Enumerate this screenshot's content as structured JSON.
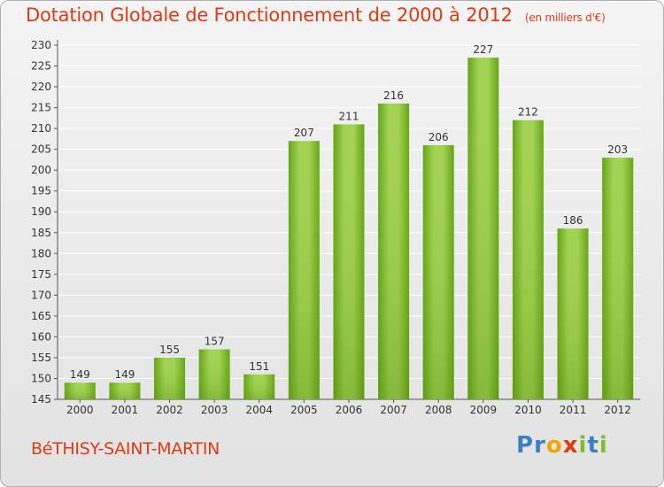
{
  "header": {
    "title": "Dotation Globale de Fonctionnement de 2000 à 2012",
    "unit": "(en milliers d'€)"
  },
  "footer": {
    "commune": "BéTHISY-SAINT-MARTIN",
    "logo": {
      "letters": [
        "P",
        "r",
        "o",
        "x",
        "i",
        "t",
        "i"
      ],
      "colors": [
        "#3a7fc4",
        "#3a7fc4",
        "#f2a400",
        "#e03a12",
        "#7cbf2a",
        "#3a7fc4",
        "#7cbf2a"
      ]
    }
  },
  "chart_data": {
    "type": "bar",
    "categories": [
      "2000",
      "2001",
      "2002",
      "2003",
      "2004",
      "2005",
      "2006",
      "2007",
      "2008",
      "2009",
      "2010",
      "2011",
      "2012"
    ],
    "values": [
      149,
      149,
      155,
      157,
      151,
      207,
      211,
      216,
      206,
      227,
      212,
      186,
      203
    ],
    "ylim": [
      145,
      230
    ],
    "yticks": [
      145,
      150,
      155,
      160,
      165,
      170,
      175,
      180,
      185,
      190,
      195,
      200,
      205,
      210,
      215,
      220,
      225,
      230
    ],
    "grid": true,
    "colors": {
      "bar_light": "#a3d255",
      "bar_dark": "#64a514",
      "grid": "#ffffff",
      "axis": "#555555"
    }
  }
}
